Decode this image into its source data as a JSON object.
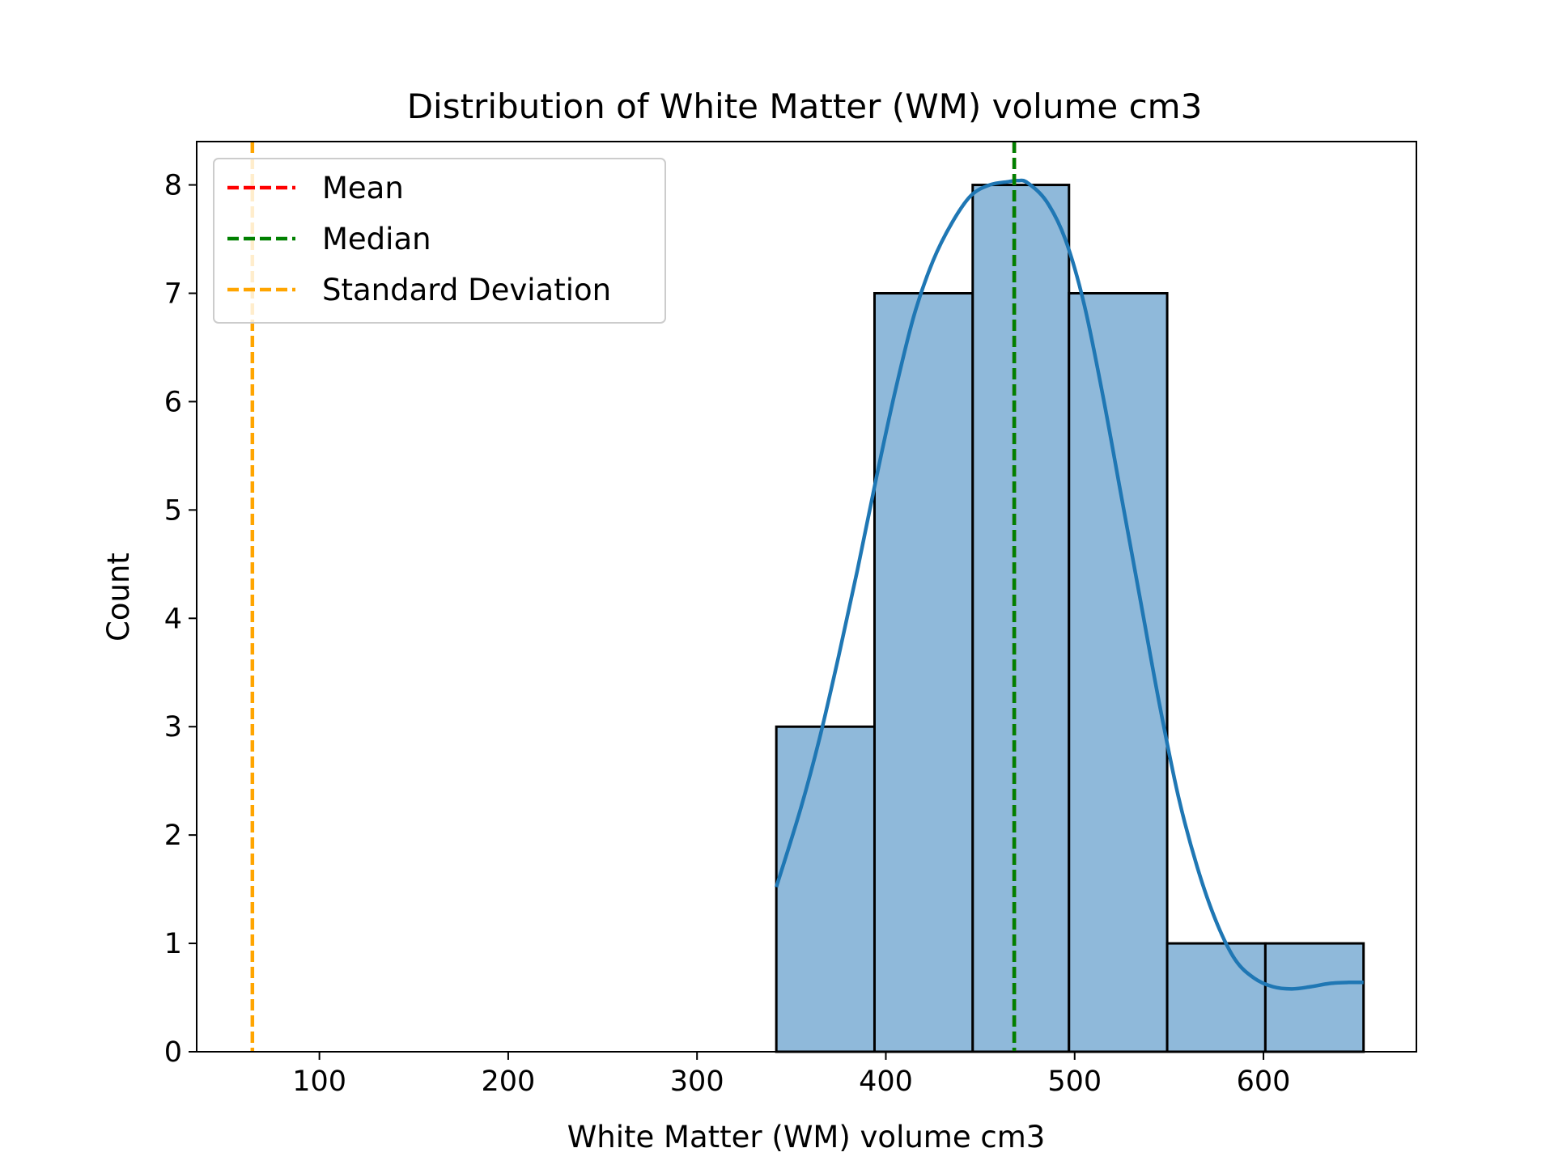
{
  "chart_data": {
    "type": "bar",
    "title": "Distribution of White Matter (WM) volume cm3",
    "xlabel": "White Matter (WM) volume cm3",
    "ylabel": "Count",
    "xlim": [
      35,
      681
    ],
    "ylim": [
      0,
      8.4
    ],
    "x_ticks": [
      "100",
      "200",
      "300",
      "400",
      "500",
      "600"
    ],
    "y_ticks": [
      "0",
      "1",
      "2",
      "3",
      "4",
      "5",
      "6",
      "7",
      "8"
    ],
    "grid": false,
    "legend_position": "upper left",
    "bins": [
      {
        "x0": 342,
        "x1": 394,
        "count": 3
      },
      {
        "x0": 394,
        "x1": 446,
        "count": 7
      },
      {
        "x0": 446,
        "x1": 497,
        "count": 8
      },
      {
        "x0": 497,
        "x1": 549,
        "count": 7
      },
      {
        "x0": 549,
        "x1": 601,
        "count": 1
      },
      {
        "x0": 601,
        "x1": 653,
        "count": 1
      }
    ],
    "kde": {
      "name": "KDE",
      "color": "#1f77b4",
      "x": [
        342,
        355,
        365,
        375,
        385,
        395,
        405,
        415,
        425,
        435,
        445,
        455,
        465,
        470,
        475,
        485,
        495,
        505,
        515,
        525,
        535,
        545,
        555,
        565,
        575,
        585,
        595,
        605,
        615,
        625,
        635,
        645,
        653
      ],
      "y": [
        1.52,
        2.25,
        2.9,
        3.65,
        4.45,
        5.3,
        6.1,
        6.8,
        7.3,
        7.65,
        7.9,
        8.0,
        8.03,
        8.04,
        8.02,
        7.85,
        7.5,
        6.9,
        6.05,
        5.1,
        4.15,
        3.2,
        2.35,
        1.7,
        1.2,
        0.85,
        0.68,
        0.6,
        0.58,
        0.6,
        0.63,
        0.64,
        0.64
      ]
    },
    "series": [
      {
        "name": "Mean",
        "type": "vline",
        "color": "#ff0000",
        "style": "dashed",
        "x": 468
      },
      {
        "name": "Median",
        "type": "vline",
        "color": "#008000",
        "style": "dashed",
        "x": 468
      },
      {
        "name": "Standard Deviation",
        "type": "vline",
        "color": "#ffa500",
        "style": "dashed",
        "x": 64.5
      }
    ],
    "colors": {
      "bar_fill": "#8fb9da",
      "bar_edge": "#000000",
      "axis": "#000000"
    }
  }
}
